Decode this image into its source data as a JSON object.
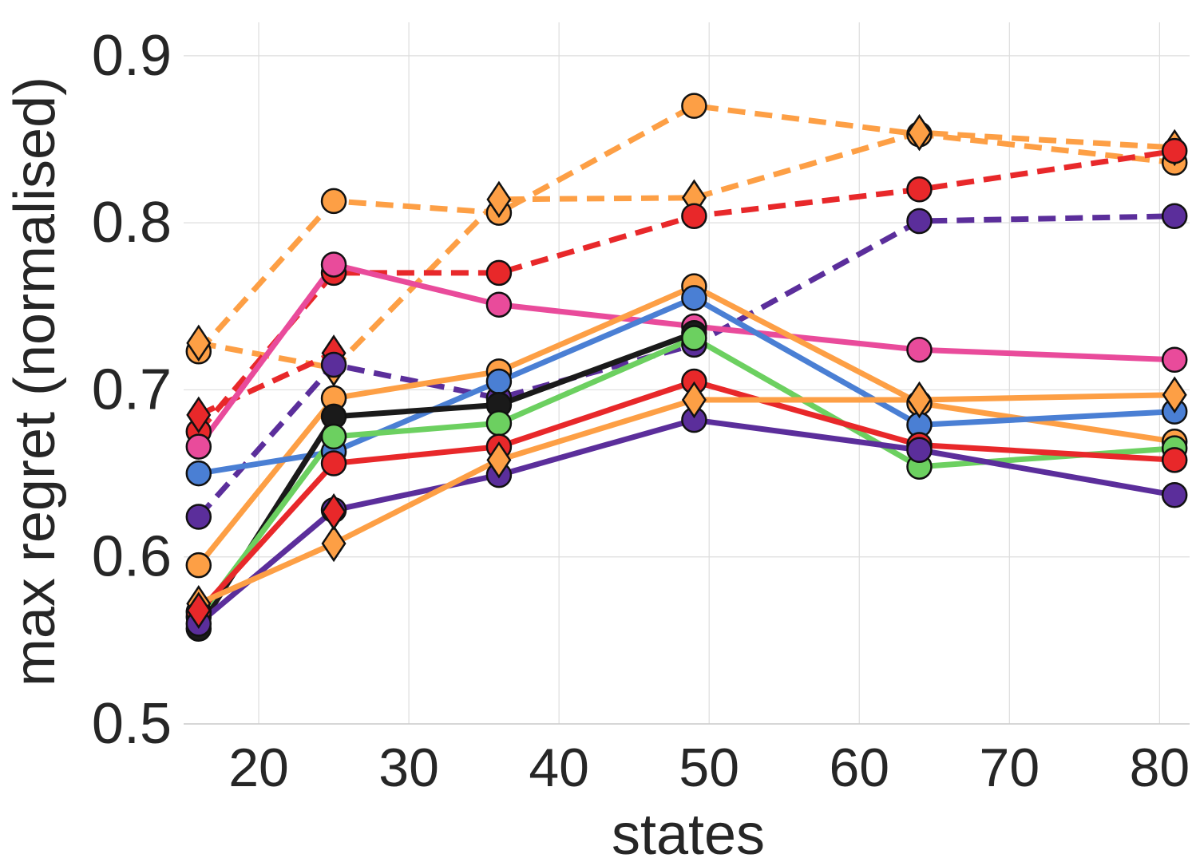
{
  "chart_data": {
    "type": "line",
    "xlabel": "states",
    "ylabel": "max regret (normalised)",
    "xlim": [
      15,
      82
    ],
    "ylim": [
      0.5,
      0.92
    ],
    "xticks": [
      20,
      30,
      40,
      50,
      60,
      70,
      80
    ],
    "yticks": [
      0.5,
      0.6,
      0.7,
      0.8,
      0.9
    ],
    "xtick_labels": [
      "20",
      "30",
      "40",
      "50",
      "60",
      "70",
      "80"
    ],
    "ytick_labels": [
      "0.5",
      "0.6",
      "0.7",
      "0.8",
      "0.9"
    ],
    "grid": true,
    "x": [
      16,
      25,
      36,
      49,
      64,
      81
    ],
    "series": [
      {
        "color": "#fd9f45",
        "style": "dashed",
        "marker": "circle",
        "values": [
          0.723,
          0.813,
          0.806,
          0.87,
          0.853,
          0.836
        ]
      },
      {
        "color": "#fd9f45",
        "style": "dashed",
        "marker": "diamond",
        "values": [
          0.728,
          0.713,
          0.814,
          0.815,
          0.854,
          0.845
        ]
      },
      {
        "color": "#e8282a",
        "style": "dashed",
        "marker": "circle",
        "values": [
          0.675,
          0.77,
          0.77,
          0.804,
          0.82,
          0.843
        ]
      },
      {
        "color": "#e8282a",
        "style": "dashed",
        "marker": "diamond",
        "values": [
          0.685,
          0.722,
          null,
          null,
          null,
          null
        ]
      },
      {
        "color": "#5b2e9b",
        "style": "dashed",
        "marker": "circle",
        "values": [
          0.624,
          0.715,
          0.695,
          0.727,
          0.801,
          0.804
        ]
      },
      {
        "color": "#e94b9b",
        "style": "solid",
        "marker": "circle",
        "values": [
          0.666,
          0.775,
          0.751,
          0.738,
          0.724,
          0.718
        ]
      },
      {
        "color": "#fd9f45",
        "style": "solid",
        "marker": "circle",
        "values": [
          0.595,
          0.695,
          0.711,
          0.762,
          0.692,
          0.669
        ]
      },
      {
        "color": "#4a7fd4",
        "style": "solid",
        "marker": "circle",
        "values": [
          0.65,
          0.663,
          0.705,
          0.755,
          0.679,
          0.687
        ]
      },
      {
        "color": "#1a1a1a",
        "style": "solid",
        "marker": "circle",
        "values": [
          0.557,
          0.684,
          0.691,
          0.734,
          null,
          null
        ]
      },
      {
        "color": "#6cd060",
        "style": "solid",
        "marker": "circle",
        "values": [
          0.564,
          0.672,
          0.68,
          0.731,
          0.654,
          0.665
        ]
      },
      {
        "color": "#e8282a",
        "style": "solid",
        "marker": "circle",
        "values": [
          0.567,
          0.656,
          0.666,
          0.705,
          0.667,
          0.658
        ]
      },
      {
        "color": "#5b2e9b",
        "style": "solid",
        "marker": "circle",
        "values": [
          0.56,
          0.628,
          0.649,
          0.682,
          0.664,
          0.637
        ]
      },
      {
        "color": "#fd9f45",
        "style": "solid",
        "marker": "diamond",
        "values": [
          0.572,
          0.608,
          0.658,
          0.694,
          0.694,
          0.697
        ]
      },
      {
        "color": "#e8282a",
        "style": "none",
        "marker": "diamond",
        "values": [
          0.568,
          0.627,
          null,
          null,
          null,
          null
        ]
      }
    ]
  }
}
